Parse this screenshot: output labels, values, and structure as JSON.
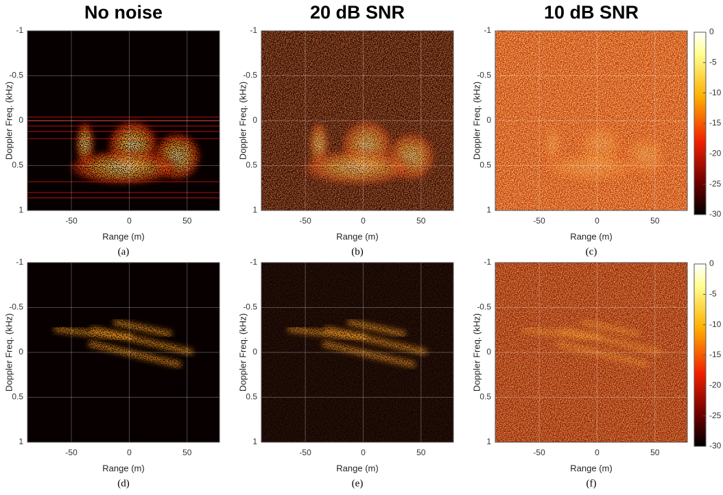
{
  "chart_data": [
    {
      "type": "heatmap",
      "title": "No noise",
      "caption": "(a)",
      "xlabel": "Range (m)",
      "ylabel": "Doppler Freq. (kHz)",
      "xlim": [
        -88,
        78
      ],
      "xticks": [
        -50,
        0,
        50
      ],
      "ylim": [
        -1,
        1
      ],
      "yticks": [
        -1,
        -0.5,
        0,
        0.5,
        1
      ],
      "y_reversed": true,
      "grid": true
    },
    {
      "type": "heatmap",
      "title": "20 dB SNR",
      "caption": "(b)",
      "xlabel": "Range (m)",
      "ylabel": "Doppler Freq. (kHz)",
      "xlim": [
        -88,
        78
      ],
      "xticks": [
        -50,
        0,
        50
      ],
      "ylim": [
        -1,
        1
      ],
      "yticks": [
        -1,
        -0.5,
        0,
        0.5,
        1
      ],
      "y_reversed": true,
      "grid": true
    },
    {
      "type": "heatmap",
      "title": "10 dB SNR",
      "caption": "(c)",
      "xlabel": "Range (m)",
      "ylabel": "Doppler Freq. (kHz)",
      "xlim": [
        -88,
        78
      ],
      "xticks": [
        -50,
        0,
        50
      ],
      "ylim": [
        -1,
        1
      ],
      "yticks": [
        -1,
        -0.5,
        0,
        0.5,
        1
      ],
      "y_reversed": true,
      "grid": true,
      "colorbar": {
        "lim": [
          -30,
          0
        ],
        "ticks": [
          0,
          -5,
          -10,
          -15,
          -20,
          -25,
          -30
        ]
      }
    },
    {
      "type": "heatmap",
      "caption": "(d)",
      "xlabel": "Range (m)",
      "ylabel": "Doppler Freq. (kHz)",
      "xlim": [
        -88,
        78
      ],
      "xticks": [
        -50,
        0,
        50
      ],
      "ylim": [
        -1,
        1
      ],
      "yticks": [
        -1,
        -0.5,
        0,
        0.5,
        1
      ],
      "y_reversed": true,
      "grid": true
    },
    {
      "type": "heatmap",
      "caption": "(e)",
      "xlabel": "Range (m)",
      "ylabel": "Doppler Freq. (kHz)",
      "xlim": [
        -88,
        78
      ],
      "xticks": [
        -50,
        0,
        50
      ],
      "ylim": [
        -1,
        1
      ],
      "yticks": [
        -1,
        -0.5,
        0,
        0.5,
        1
      ],
      "y_reversed": true,
      "grid": true
    },
    {
      "type": "heatmap",
      "caption": "(f)",
      "xlabel": "Range (m)",
      "ylabel": "Doppler Freq. (kHz)",
      "xlim": [
        -88,
        78
      ],
      "xticks": [
        -50,
        0,
        50
      ],
      "ylim": [
        -1,
        1
      ],
      "yticks": [
        -1,
        -0.5,
        0,
        0.5,
        1
      ],
      "y_reversed": true,
      "grid": true,
      "colorbar": {
        "lim": [
          -30,
          0
        ],
        "ticks": [
          0,
          -5,
          -10,
          -15,
          -20,
          -25,
          -30
        ]
      }
    }
  ]
}
